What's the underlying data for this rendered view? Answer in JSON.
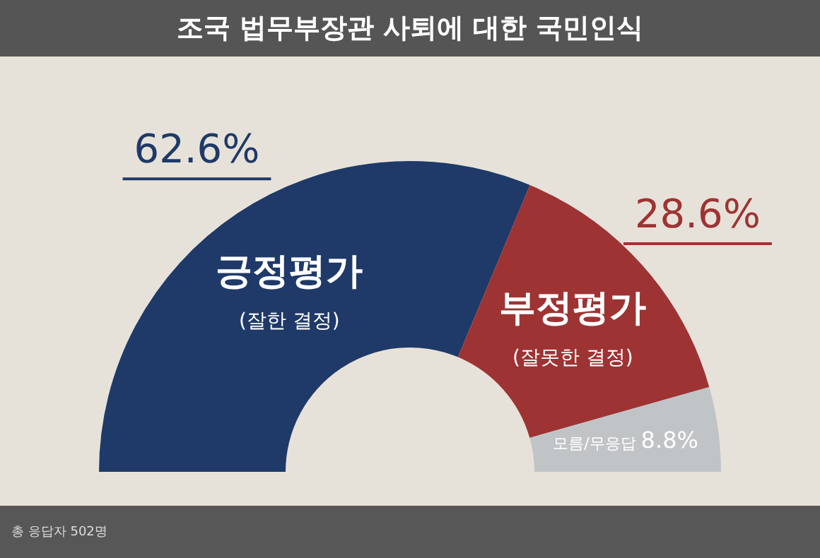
{
  "chart_data": {
    "type": "donut",
    "title": "조국 법무부장관 사퇴에 대한 국민인식",
    "categories": [
      "긍정평가\n(잘한 결정)",
      "부정평가\n(잘못한 결정)",
      "모름/무응답"
    ],
    "values": [
      62.6,
      28.6,
      8.8
    ],
    "value_labels": [
      "62.6%",
      "28.6%",
      "8.8%"
    ],
    "colors": [
      "#1f3a68",
      "#9e3333",
      "#c0c4c7"
    ],
    "legend": false,
    "annotations": [
      "총 응답자 502명"
    ]
  }
}
